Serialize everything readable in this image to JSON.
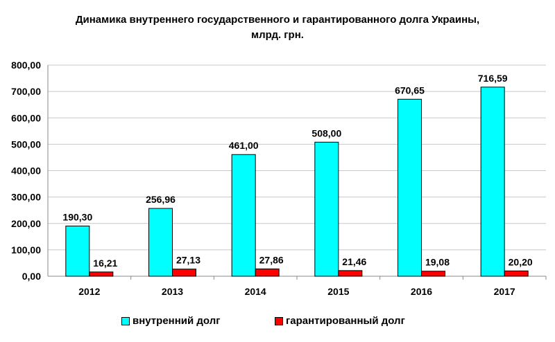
{
  "chart_data": {
    "type": "bar",
    "title_line1": "Динамика внутреннего государственного и гарантированного долга Украины,",
    "title_line2": "млрд. грн.",
    "categories": [
      "2012",
      "2013",
      "2014",
      "2015",
      "2016",
      "2017"
    ],
    "series": [
      {
        "name": "внутренний долг",
        "color": "#00FFFF",
        "values": [
          190.3,
          256.96,
          461.0,
          508.0,
          670.65,
          716.59
        ],
        "labels": [
          "190,30",
          "256,96",
          "461,00",
          "508,00",
          "670,65",
          "716,59"
        ]
      },
      {
        "name": "гарантированный долг",
        "color": "#FF0000",
        "values": [
          16.21,
          27.13,
          27.86,
          21.46,
          19.08,
          20.2
        ],
        "labels": [
          "16,21",
          "27,13",
          "27,86",
          "21,46",
          "19,08",
          "20,20"
        ]
      }
    ],
    "ylim": [
      0,
      800
    ],
    "yticks": [
      0,
      100,
      200,
      300,
      400,
      500,
      600,
      700,
      800
    ],
    "ytick_labels": [
      "0,00",
      "100,00",
      "200,00",
      "300,00",
      "400,00",
      "500,00",
      "600,00",
      "700,00",
      "800,00"
    ],
    "grid": true,
    "legend": "bottom",
    "xlabel": "",
    "ylabel": ""
  }
}
